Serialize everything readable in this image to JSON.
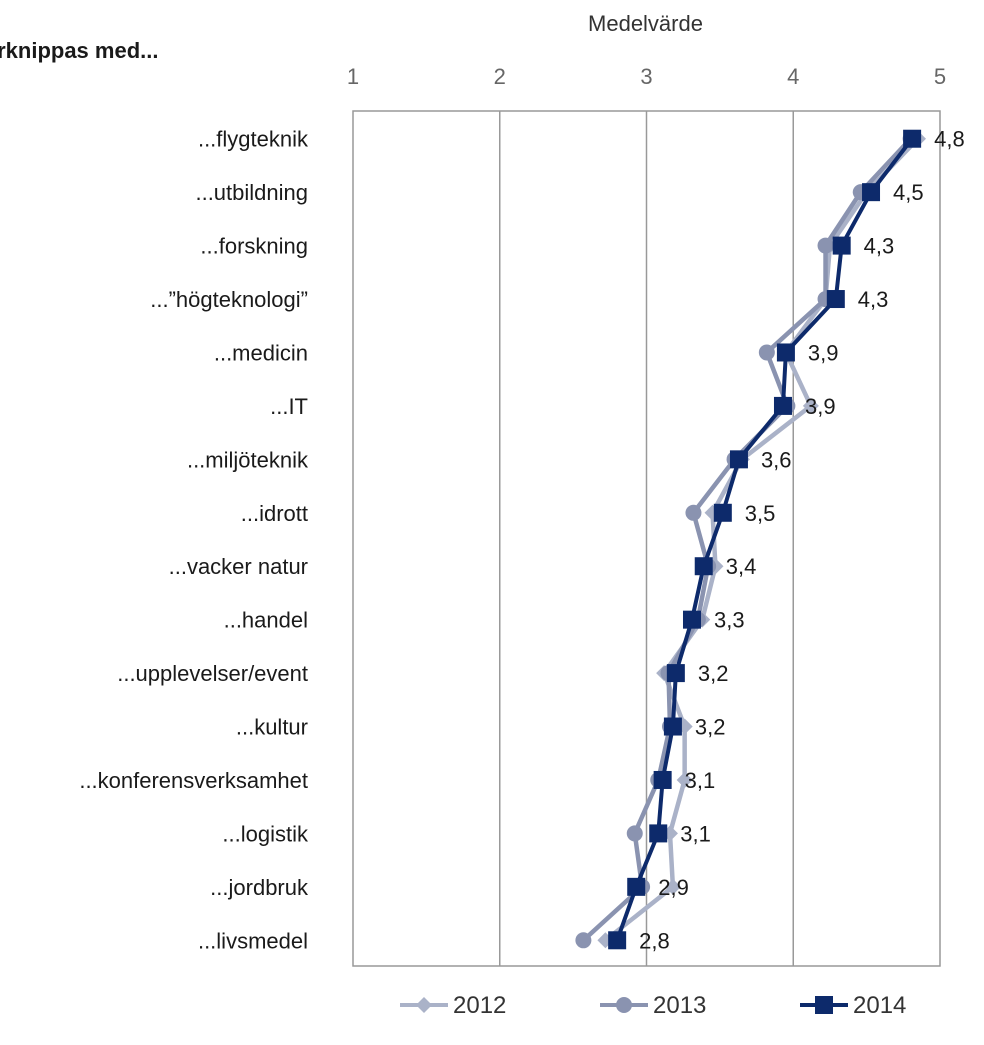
{
  "header": {
    "title": "...förknippas med..."
  },
  "chart_data": {
    "type": "line",
    "orientation": "horizontal",
    "xlabel": "Medelvärde",
    "xlim": [
      1,
      5
    ],
    "xticks": [
      "1",
      "2",
      "3",
      "4",
      "5"
    ],
    "categories": [
      "...flygteknik",
      "...utbildning",
      "...forskning",
      "...”högteknologi”",
      "...medicin",
      "...IT",
      "...miljöteknik",
      "...idrott",
      "...vacker natur",
      "...handel",
      "...upplevelser/event",
      "...kultur",
      "...konferensverksamhet",
      "...logistik",
      "...jordbruk",
      "...livsmedel"
    ],
    "series": [
      {
        "name": "2012",
        "color": "#aab2c8",
        "marker": "diamond",
        "values": [
          4.85,
          4.5,
          4.25,
          4.22,
          3.95,
          4.12,
          3.65,
          3.45,
          3.47,
          3.38,
          3.12,
          3.26,
          3.26,
          3.16,
          3.18,
          2.72
        ]
      },
      {
        "name": "2013",
        "color": "#8a93b0",
        "marker": "circle",
        "values": [
          4.8,
          4.46,
          4.22,
          4.22,
          3.82,
          3.96,
          3.6,
          3.32,
          3.42,
          3.35,
          3.15,
          3.16,
          3.08,
          2.92,
          2.97,
          2.57
        ]
      },
      {
        "name": "2014",
        "color": "#0d2a6b",
        "marker": "square",
        "values": [
          4.81,
          4.53,
          4.33,
          4.29,
          3.95,
          3.93,
          3.63,
          3.52,
          3.39,
          3.31,
          3.2,
          3.18,
          3.11,
          3.08,
          2.93,
          2.8
        ]
      }
    ],
    "data_labels": [
      "4,8",
      "4,5",
      "4,3",
      "4,3",
      "3,9",
      "3,9",
      "3,6",
      "3,5",
      "3,4",
      "3,3",
      "3,2",
      "3,2",
      "3,1",
      "3,1",
      "2,9",
      "2,8"
    ],
    "grid": true,
    "legend": {
      "placement": "bottom"
    }
  }
}
